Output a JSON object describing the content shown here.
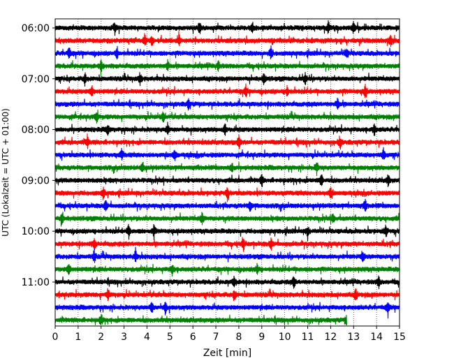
{
  "chart_data": {
    "type": "line",
    "title": "",
    "xlabel": "Zeit  [min]",
    "ylabel": "UTC (Lokalzeit = UTC + 01:00)",
    "xlim": [
      0,
      15
    ],
    "x_ticks": [
      0,
      1,
      2,
      3,
      4,
      5,
      6,
      7,
      8,
      9,
      10,
      11,
      12,
      13,
      14,
      15
    ],
    "x_tick_labels": [
      "0",
      "1",
      "2",
      "3",
      "4",
      "5",
      "6",
      "7",
      "8",
      "9",
      "10",
      "11",
      "12",
      "13",
      "14",
      "15"
    ],
    "grid_x": "dotted vertical lines at each minute",
    "trace_minutes": 15,
    "y_tick_labels": [
      "06:00",
      "07:00",
      "08:00",
      "09:00",
      "10:00",
      "11:00"
    ],
    "y_tick_trace_index": [
      0,
      4,
      8,
      12,
      16,
      20
    ],
    "series_colors": [
      "#000000",
      "#ff0000",
      "#0000ff",
      "#008000"
    ],
    "traces": [
      {
        "start": "06:00",
        "color": "#000000",
        "end_min": 15,
        "events_min": [
          8.6,
          11.9,
          13.0,
          2.6,
          6.3
        ]
      },
      {
        "start": "06:15",
        "color": "#ff0000",
        "end_min": 15,
        "events_min": [
          5.4,
          3.9,
          4.2,
          14.6
        ]
      },
      {
        "start": "06:30",
        "color": "#0000ff",
        "end_min": 15,
        "events_min": [
          0.6,
          2.7,
          9.4,
          12.7
        ]
      },
      {
        "start": "06:45",
        "color": "#008000",
        "end_min": 15,
        "events_min": [
          2.0,
          7.1,
          4.9
        ]
      },
      {
        "start": "07:00",
        "color": "#000000",
        "end_min": 15,
        "events_min": [
          1.3,
          3.7,
          9.1,
          10.9
        ]
      },
      {
        "start": "07:15",
        "color": "#ff0000",
        "end_min": 15,
        "events_min": [
          1.6,
          8.3,
          10.1,
          13.5
        ]
      },
      {
        "start": "07:30",
        "color": "#0000ff",
        "end_min": 15,
        "events_min": [
          5.8,
          12.3
        ]
      },
      {
        "start": "07:45",
        "color": "#008000",
        "end_min": 15,
        "events_min": [
          1.8,
          4.7
        ]
      },
      {
        "start": "08:00",
        "color": "#000000",
        "end_min": 15,
        "events_min": [
          2.3,
          4.9,
          7.4,
          13.9
        ]
      },
      {
        "start": "08:15",
        "color": "#ff0000",
        "end_min": 15,
        "events_min": [
          8.0,
          1.4,
          12.4
        ]
      },
      {
        "start": "08:30",
        "color": "#0000ff",
        "end_min": 15,
        "events_min": [
          2.9,
          5.2,
          14.3
        ]
      },
      {
        "start": "08:45",
        "color": "#008000",
        "end_min": 15,
        "events_min": [
          3.8,
          7.7,
          11.4
        ]
      },
      {
        "start": "09:00",
        "color": "#000000",
        "end_min": 15,
        "events_min": [
          11.6,
          14.5,
          9.0
        ]
      },
      {
        "start": "09:15",
        "color": "#ff0000",
        "end_min": 15,
        "events_min": [
          2.1,
          7.5,
          12.0
        ]
      },
      {
        "start": "09:30",
        "color": "#0000ff",
        "end_min": 15,
        "events_min": [
          2.2,
          13.5,
          8.5
        ]
      },
      {
        "start": "09:45",
        "color": "#008000",
        "end_min": 15,
        "events_min": [
          0.3,
          6.4,
          12.1
        ]
      },
      {
        "start": "10:00",
        "color": "#000000",
        "end_min": 15,
        "events_min": [
          4.3,
          11.0,
          3.2,
          14.4
        ]
      },
      {
        "start": "10:15",
        "color": "#ff0000",
        "end_min": 15,
        "events_min": [
          1.7,
          8.2,
          9.4
        ]
      },
      {
        "start": "10:30",
        "color": "#0000ff",
        "end_min": 15,
        "events_min": [
          1.7,
          3.5,
          13.4
        ]
      },
      {
        "start": "10:45",
        "color": "#008000",
        "end_min": 15,
        "events_min": [
          0.6,
          8.8,
          5.1
        ]
      },
      {
        "start": "11:00",
        "color": "#000000",
        "end_min": 15,
        "events_min": [
          7.8,
          10.4,
          14.1
        ]
      },
      {
        "start": "11:15",
        "color": "#ff0000",
        "end_min": 15,
        "events_min": [
          7.8,
          13.1,
          2.3
        ]
      },
      {
        "start": "11:30",
        "color": "#0000ff",
        "end_min": 15,
        "events_min": [
          4.2,
          4.8,
          14.5
        ]
      },
      {
        "start": "11:45",
        "color": "#008000",
        "end_min": 12.7,
        "events_min": [
          2.0,
          12.7
        ]
      }
    ]
  }
}
